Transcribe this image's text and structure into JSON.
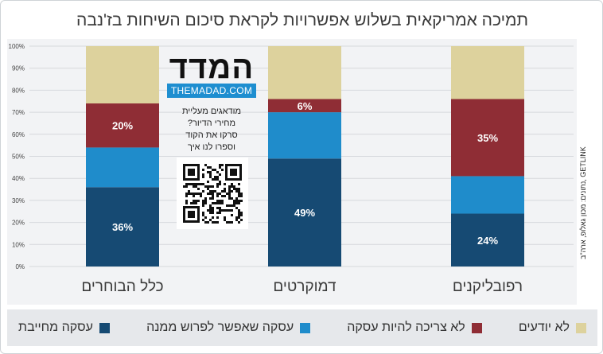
{
  "title": "תמיכה אמריקאית בשלוש אפשרויות לקראת סיכום השיחות בז'נבה",
  "source_note": "נתונים: מכון גאלופ, ארה\"ב, GETLINK",
  "logo": {
    "text": "המדד",
    "url": "THEMADAD.COM"
  },
  "promo_lines": [
    "מודאגים מעליית",
    "מחירי הדיור?",
    "סרקו את הקוד",
    "וספרו לנו איך"
  ],
  "colors": {
    "committed": "#164a73",
    "tentative": "#1f8ccb",
    "no_deal": "#8f2d35",
    "dont_know": "#ddd29d"
  },
  "icons": {
    "qr": "qr-code-icon"
  },
  "chart_data": {
    "type": "bar",
    "stacked": true,
    "title": "תמיכה אמריקאית בשלוש אפשרויות לקראת סיכום השיחות בז'נבה",
    "categories": [
      "כלל הבוחרים",
      "דמוקרטים",
      "רפובליקנים"
    ],
    "ylim": [
      0,
      100
    ],
    "yticks": [
      "0%",
      "10%",
      "20%",
      "30%",
      "40%",
      "50%",
      "60%",
      "70%",
      "80%",
      "90%",
      "100%"
    ],
    "grid": true,
    "legend_position": "bottom",
    "series": [
      {
        "name": "עסקה מחייבת",
        "key": "committed",
        "values": [
          36,
          49,
          24
        ],
        "labels": [
          "36%",
          "49%",
          "24%"
        ]
      },
      {
        "name": "עסקה שאפשר לפרוש ממנה",
        "key": "tentative",
        "values": [
          18,
          21,
          17
        ],
        "labels": [
          "",
          "",
          ""
        ]
      },
      {
        "name": "לא צריכה להיות עסקה",
        "key": "no_deal",
        "values": [
          20,
          6,
          35
        ],
        "labels": [
          "20%",
          "6%",
          "35%"
        ]
      },
      {
        "name": "לא יודעים",
        "key": "dont_know",
        "values": [
          26,
          24,
          24
        ],
        "labels": [
          "",
          "",
          ""
        ]
      }
    ]
  }
}
